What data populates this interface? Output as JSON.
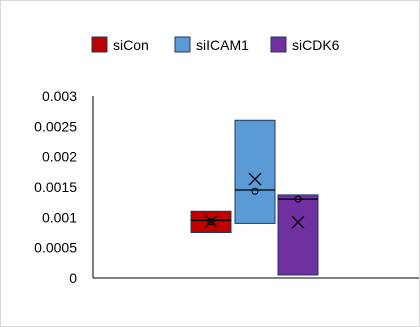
{
  "chart_data": {
    "type": "boxplot",
    "title": "",
    "xlabel": "",
    "ylabel": "",
    "ylim": [
      0,
      0.003
    ],
    "y_ticks": [
      "0",
      "0.0005",
      "0.001",
      "0.0015",
      "0.002",
      "0.0025",
      "0.003"
    ],
    "grid": false,
    "legend_position": "top",
    "series": [
      {
        "name": "siCon",
        "color": "#c00000",
        "q1": 0.00075,
        "median": 0.00095,
        "q3": 0.0011,
        "mean": 0.00093,
        "point": 0.00093
      },
      {
        "name": "siICAM1",
        "color": "#5b9bd5",
        "q1": 0.0009,
        "median": 0.00145,
        "q3": 0.0026,
        "mean": 0.00163,
        "point": 0.00143
      },
      {
        "name": "siCDK6",
        "color": "#7030a0",
        "q1": 5e-05,
        "median": 0.0013,
        "q3": 0.00137,
        "mean": 0.00092,
        "point": 0.0013
      }
    ]
  }
}
